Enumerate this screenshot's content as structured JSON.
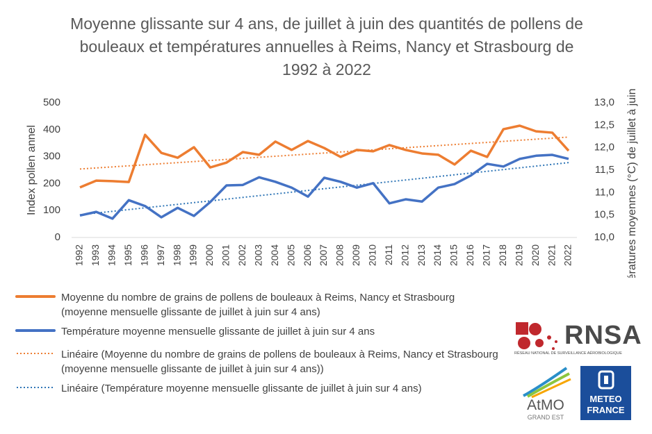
{
  "chart_data": {
    "type": "line",
    "title": "Moyenne glissante sur 4 ans, de juillet à juin des quantités de pollens de bouleaux et températures annuelles à Reims, Nancy et Strasbourg de 1992 à 2022",
    "ylabel": "Index pollen annel",
    "y2label": "Températures moyennes (°C) de juillet à juin",
    "categories": [
      "1992",
      "1993",
      "1994",
      "1995",
      "1996",
      "1997",
      "1998",
      "1999",
      "2000",
      "2001",
      "2002",
      "2003",
      "2004",
      "2005",
      "2006",
      "2007",
      "2008",
      "2009",
      "2010",
      "2011",
      "2012",
      "2013",
      "2014",
      "2015",
      "2016",
      "2017",
      "2018",
      "2019",
      "2020",
      "2021",
      "2022"
    ],
    "ylim": [
      0,
      500
    ],
    "yticks": [
      0,
      100,
      200,
      300,
      400,
      500
    ],
    "y2lim": [
      10,
      13
    ],
    "y2ticks": [
      {
        "value": 10,
        "label": "10,0"
      },
      {
        "value": 10.5,
        "label": "10,5"
      },
      {
        "value": 11,
        "label": "11,0"
      },
      {
        "value": 11.5,
        "label": "11,5"
      },
      {
        "value": 12,
        "label": "12,0"
      },
      {
        "value": 12.5,
        "label": "12,5"
      },
      {
        "value": 13,
        "label": "13,0"
      }
    ],
    "series": [
      {
        "name": "Moyenne du nombre de grains de pollens de bouleaux à Reims, Nancy et Strasbourg (moyenne mensuelle glissante de juillet à juin sur 4 ans)",
        "color": "#ed7d31",
        "values": [
          186,
          211,
          209,
          206,
          381,
          314,
          296,
          335,
          260,
          278,
          317,
          307,
          356,
          325,
          358,
          332,
          299,
          325,
          320,
          343,
          325,
          312,
          307,
          271,
          322,
          299,
          402,
          415,
          394,
          389,
          322
        ],
        "trendline": {
          "name": "Linéaire (Moyenne du nombre de grains de pollens de bouleaux à Reims, Nancy et Strasbourg (moyenne mensuelle glissante de juillet à juin sur 4 ans))",
          "color": "#ed7d31"
        }
      },
      {
        "name": "Température moyenne mensuelle glissante de juillet à juin sur 4 ans",
        "color": "#4472c4",
        "axis": "y2",
        "values": [
          10.49,
          10.57,
          10.42,
          10.83,
          10.7,
          10.45,
          10.66,
          10.48,
          10.79,
          11.16,
          11.17,
          11.34,
          11.24,
          11.11,
          10.91,
          11.33,
          11.24,
          11.11,
          11.21,
          10.76,
          10.85,
          10.8,
          11.11,
          11.19,
          11.38,
          11.64,
          11.58,
          11.75,
          11.82,
          11.84,
          11.75
        ],
        "trendline": {
          "name": "Linéaire (Température moyenne mensuelle glissante de juillet à juin sur 4 ans)",
          "color": "#2e75b6"
        }
      }
    ]
  },
  "logos": [
    "RNSA",
    "RÉSEAU NATIONAL DE SURVEILLANCE AÉROBIOLOGIQUE",
    "AtMO",
    "GRAND EST",
    "METEO",
    "FRANCE"
  ]
}
